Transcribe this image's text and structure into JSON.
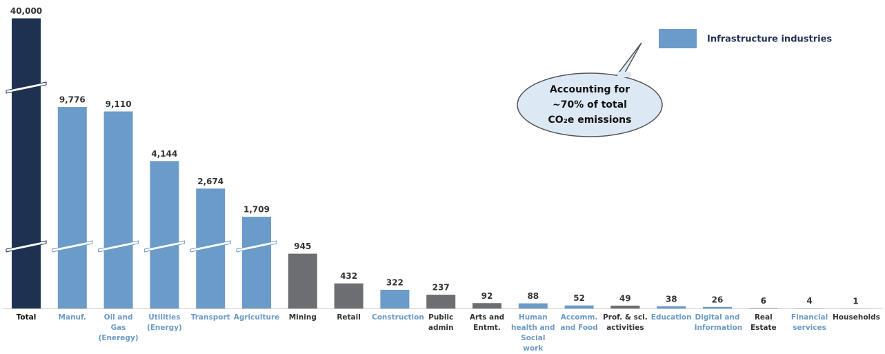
{
  "chart_data": {
    "type": "bar",
    "categories": [
      "Total",
      "Manuf.",
      "Oil and Gas\n(Eneregy)",
      "Utilities\n(Energy)",
      "Transport",
      "Agriculture",
      "Mining",
      "Retail",
      "Construction",
      "Public\nadmin",
      "Arts and\nEntmt.",
      "Human\nhealth and\nSocial\nwork",
      "Accomm.\nand Food",
      "Prof. & sci.\nactivities",
      "Education",
      "Digital and\nInformation",
      "Real\nEstate",
      "Financial\nservices",
      "Households"
    ],
    "values": [
      40000,
      9776,
      9110,
      4144,
      2674,
      1709,
      945,
      432,
      322,
      237,
      92,
      88,
      52,
      49,
      38,
      26,
      6,
      4,
      1
    ],
    "value_labels": [
      "40,000",
      "9,776",
      "9,110",
      "4,144",
      "2,674",
      "1,709",
      "945",
      "432",
      "322",
      "237",
      "92",
      "88",
      "52",
      "49",
      "38",
      "26",
      "6",
      "4",
      "1"
    ],
    "colors": [
      "#1f3150",
      "#6b9bc8",
      "#6b9bc8",
      "#6b9bc8",
      "#6b9bc8",
      "#6b9bc8",
      "#6d6e71",
      "#6d6e71",
      "#6b9bc8",
      "#6d6e71",
      "#6d6e71",
      "#6b9bc8",
      "#6b9bc8",
      "#6d6e71",
      "#6b9bc8",
      "#6b9bc8",
      "#6d6e71",
      "#6b9bc8",
      "#6d6e71"
    ],
    "legend": {
      "label": "Infrastructure industries",
      "color": "#6b9bc8"
    },
    "annotation": [
      "Accounting for",
      "~70% of total",
      "CO₂e emissions"
    ]
  }
}
